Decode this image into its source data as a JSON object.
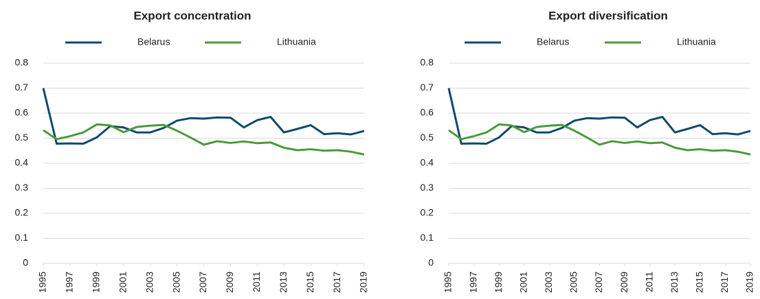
{
  "chart_data": [
    {
      "type": "line",
      "title": "Export concentration",
      "x": [
        1995,
        1996,
        1997,
        1998,
        1999,
        2000,
        2001,
        2002,
        2003,
        2004,
        2005,
        2006,
        2007,
        2008,
        2009,
        2010,
        2011,
        2012,
        2013,
        2014,
        2015,
        2016,
        2017,
        2018,
        2019
      ],
      "xlim": [
        1995,
        2019
      ],
      "xticks": [
        1995,
        1997,
        1999,
        2001,
        2003,
        2005,
        2007,
        2009,
        2011,
        2013,
        2015,
        2017,
        2019
      ],
      "ylim": [
        0,
        0.8
      ],
      "yticks": [
        0,
        0.1,
        0.2,
        0.3,
        0.4,
        0.5,
        0.6,
        0.7,
        0.8
      ],
      "grid": true,
      "series": [
        {
          "name": "Belarus",
          "color": "#0d4a6e",
          "values": [
            0.7,
            0.478,
            0.479,
            0.478,
            0.503,
            0.548,
            0.543,
            0.523,
            0.523,
            0.541,
            0.57,
            0.58,
            0.578,
            0.583,
            0.582,
            0.543,
            0.572,
            0.585,
            0.523,
            0.537,
            0.552,
            0.516,
            0.52,
            0.515,
            0.529
          ]
        },
        {
          "name": "Lithuania",
          "color": "#4a9a3a",
          "values": [
            0.532,
            0.496,
            0.508,
            0.523,
            0.555,
            0.551,
            0.524,
            0.545,
            0.55,
            0.553,
            0.53,
            0.503,
            0.474,
            0.488,
            0.481,
            0.487,
            0.48,
            0.483,
            0.462,
            0.452,
            0.456,
            0.45,
            0.452,
            0.446,
            0.435
          ]
        }
      ]
    },
    {
      "type": "line",
      "title": "Export diversification",
      "x": [
        1995,
        1996,
        1997,
        1998,
        1999,
        2000,
        2001,
        2002,
        2003,
        2004,
        2005,
        2006,
        2007,
        2008,
        2009,
        2010,
        2011,
        2012,
        2013,
        2014,
        2015,
        2016,
        2017,
        2018,
        2019
      ],
      "xlim": [
        1995,
        2019
      ],
      "xticks": [
        1995,
        1997,
        1999,
        2001,
        2003,
        2005,
        2007,
        2009,
        2011,
        2013,
        2015,
        2017,
        2019
      ],
      "ylim": [
        0,
        0.8
      ],
      "yticks": [
        0,
        0.1,
        0.2,
        0.3,
        0.4,
        0.5,
        0.6,
        0.7,
        0.8
      ],
      "grid": true,
      "series": [
        {
          "name": "Belarus",
          "color": "#0d4a6e",
          "values": [
            0.7,
            0.478,
            0.479,
            0.478,
            0.503,
            0.548,
            0.543,
            0.523,
            0.523,
            0.541,
            0.57,
            0.58,
            0.578,
            0.583,
            0.582,
            0.543,
            0.572,
            0.585,
            0.523,
            0.537,
            0.552,
            0.516,
            0.52,
            0.515,
            0.529
          ]
        },
        {
          "name": "Lithuania",
          "color": "#4a9a3a",
          "values": [
            0.532,
            0.496,
            0.508,
            0.523,
            0.555,
            0.551,
            0.524,
            0.545,
            0.55,
            0.553,
            0.53,
            0.503,
            0.474,
            0.488,
            0.481,
            0.487,
            0.48,
            0.483,
            0.462,
            0.452,
            0.456,
            0.45,
            0.452,
            0.446,
            0.435
          ]
        }
      ]
    }
  ]
}
